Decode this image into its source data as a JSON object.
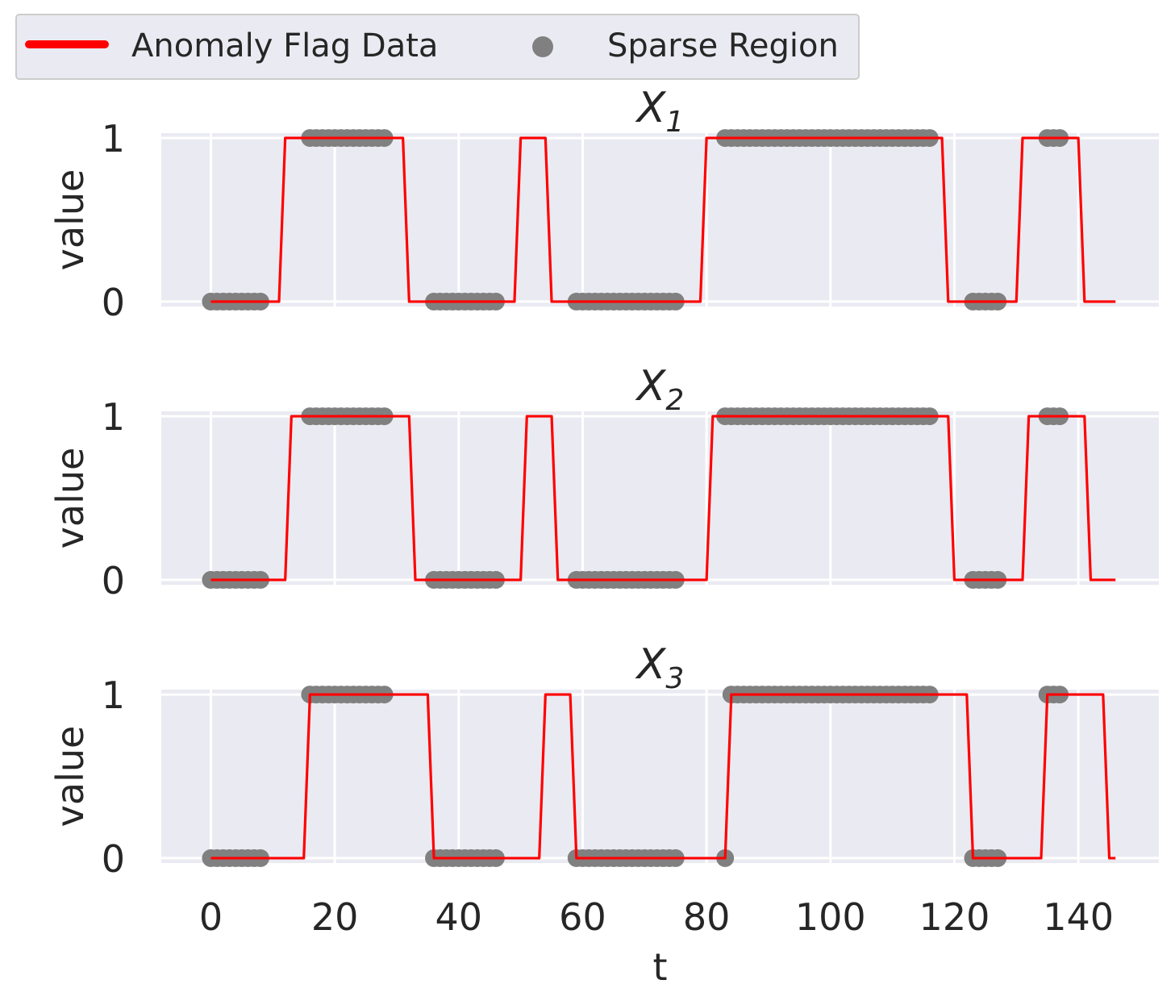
{
  "chart_data": {
    "type": "line",
    "legend": {
      "placement": "top-left",
      "entries": [
        {
          "label": "Anomaly Flag Data",
          "kind": "line",
          "color": "#ff0000"
        },
        {
          "label": "Sparse Region",
          "kind": "marker",
          "color": "#808080"
        }
      ]
    },
    "xlabel": "t",
    "ylabel": "value",
    "xlim": [
      -8,
      153
    ],
    "ylim": [
      -0.03,
      1.03
    ],
    "x_ticks": [
      0,
      20,
      40,
      60,
      80,
      100,
      120,
      140
    ],
    "y_ticks": [
      0,
      1
    ],
    "grid": true,
    "panel_background": "#eaeaf2",
    "n_points": 147,
    "panels": [
      {
        "title": "X",
        "title_subscript": "1",
        "anomaly_ones": [
          [
            12,
            31
          ],
          [
            50,
            54
          ],
          [
            80,
            118
          ],
          [
            131,
            140
          ]
        ],
        "sparse_region_ranges": [
          [
            0,
            8
          ],
          [
            16,
            28
          ],
          [
            36,
            46
          ],
          [
            59,
            75
          ],
          [
            83,
            116
          ],
          [
            123,
            127
          ],
          [
            135,
            137
          ]
        ]
      },
      {
        "title": "X",
        "title_subscript": "2",
        "anomaly_ones": [
          [
            13,
            32
          ],
          [
            51,
            55
          ],
          [
            81,
            119
          ],
          [
            132,
            141
          ]
        ],
        "sparse_region_ranges": [
          [
            0,
            8
          ],
          [
            16,
            28
          ],
          [
            36,
            46
          ],
          [
            59,
            75
          ],
          [
            83,
            116
          ],
          [
            123,
            127
          ],
          [
            135,
            137
          ]
        ]
      },
      {
        "title": "X",
        "title_subscript": "3",
        "anomaly_ones": [
          [
            16,
            35
          ],
          [
            54,
            58
          ],
          [
            84,
            122
          ],
          [
            135,
            144
          ]
        ],
        "sparse_region_ranges": [
          [
            0,
            8
          ],
          [
            16,
            28
          ],
          [
            36,
            46
          ],
          [
            59,
            75
          ],
          [
            83,
            116
          ],
          [
            123,
            127
          ],
          [
            135,
            137
          ]
        ]
      }
    ]
  }
}
